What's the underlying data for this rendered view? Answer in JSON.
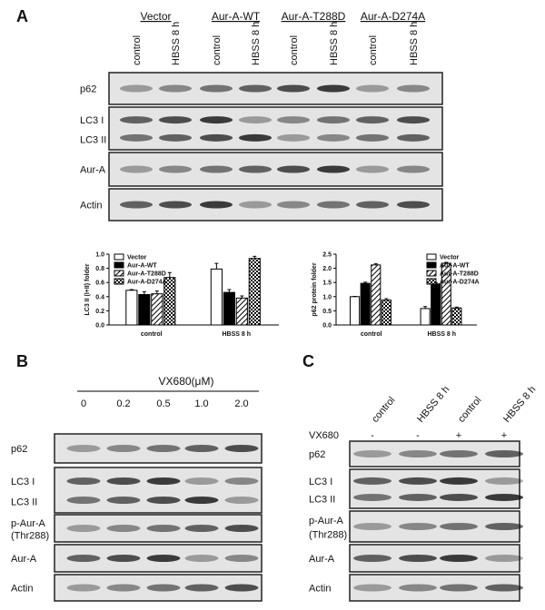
{
  "panels": {
    "A": {
      "label": "A",
      "groups": [
        "Vector",
        "Aur-A-WT",
        "Aur-A-T288D",
        "Aur-A-D274A"
      ],
      "lanes": [
        "control",
        "HBSS 8 h",
        "control",
        "HBSS 8 h",
        "control",
        "HBSS 8 h",
        "control",
        "HBSS 8 h"
      ],
      "rows": [
        [
          "p62"
        ],
        [
          "LC3 I",
          "LC3 II"
        ],
        [
          "Aur-A"
        ],
        [
          "Actin"
        ]
      ]
    },
    "B": {
      "label": "B",
      "treatment": "VX680(μM)",
      "lanes": [
        "0",
        "0.2",
        "0.5",
        "1.0",
        "2.0"
      ],
      "rows": [
        [
          "p62"
        ],
        [
          "LC3 I",
          "LC3 II"
        ],
        [
          "p-Aur-A",
          "(Thr288)"
        ],
        [
          "Aur-A"
        ],
        [
          "Actin"
        ]
      ]
    },
    "C": {
      "label": "C",
      "lanes": [
        "control",
        "HBSS 8 h",
        "control",
        "HBSS 8 h"
      ],
      "treatment": "VX680",
      "signs": [
        "-",
        "-",
        "+",
        "+"
      ],
      "rows": [
        [
          "p62"
        ],
        [
          "LC3 I",
          "LC3 II"
        ],
        [
          "p-Aur-A",
          "(Thr288)"
        ],
        [
          "Aur-A"
        ],
        [
          "Actin"
        ]
      ]
    }
  },
  "chart_data": [
    {
      "type": "bar",
      "y_label": "LC3 II (I+II) folder",
      "categories": [
        "control",
        "HBSS 8 h"
      ],
      "legend": "top-left",
      "ylim": [
        0,
        1
      ],
      "yticks": [
        {
          "value": 0,
          "label": "0.0"
        },
        0.2,
        0.4,
        0.6,
        0.8,
        {
          "value": 1,
          "label": "1.0"
        }
      ],
      "series": [
        {
          "name": "Vector",
          "color": "#ffffff",
          "pattern": "solid",
          "values": [
            0.49,
            0.79
          ],
          "errors": [
            0.01,
            0.08
          ]
        },
        {
          "name": "Aur-A-WT",
          "color": "#000000",
          "pattern": "solid",
          "values": [
            0.43,
            0.46
          ],
          "errors": [
            0.04,
            0.04
          ]
        },
        {
          "name": "Aur-A-T288D",
          "color": "#000000",
          "pattern": "hatch",
          "values": [
            0.44,
            0.38
          ],
          "errors": [
            0.04,
            0.03
          ]
        },
        {
          "name": "Aur-A-D274A",
          "color": "#000000",
          "pattern": "check",
          "values": [
            0.67,
            0.94
          ],
          "errors": [
            0.07,
            0.03
          ]
        }
      ]
    },
    {
      "type": "bar",
      "y_label": "p62 protein folder",
      "categories": [
        "control",
        "HBSS 8 h"
      ],
      "legend": "top-right",
      "ylim": [
        0,
        2.5
      ],
      "yticks": [
        {
          "value": 0,
          "label": "0.0"
        },
        0.5,
        {
          "value": 1,
          "label": "1.0"
        },
        1.5,
        {
          "value": 2,
          "label": "2.0"
        },
        2.5
      ],
      "series": [
        {
          "name": "Vector",
          "color": "#ffffff",
          "pattern": "solid",
          "values": [
            1.0,
            0.58
          ],
          "errors": [
            0.01,
            0.07
          ]
        },
        {
          "name": "Aur-A-WT",
          "color": "#000000",
          "pattern": "solid",
          "values": [
            1.47,
            1.45
          ],
          "errors": [
            0.04,
            0.04
          ]
        },
        {
          "name": "Aur-A-T288D",
          "color": "#000000",
          "pattern": "hatch",
          "values": [
            2.12,
            2.18
          ],
          "errors": [
            0.04,
            0.03
          ]
        },
        {
          "name": "Aur-A-D274A",
          "color": "#000000",
          "pattern": "check",
          "values": [
            0.88,
            0.6
          ],
          "errors": [
            0.05,
            0.03
          ]
        }
      ]
    }
  ]
}
